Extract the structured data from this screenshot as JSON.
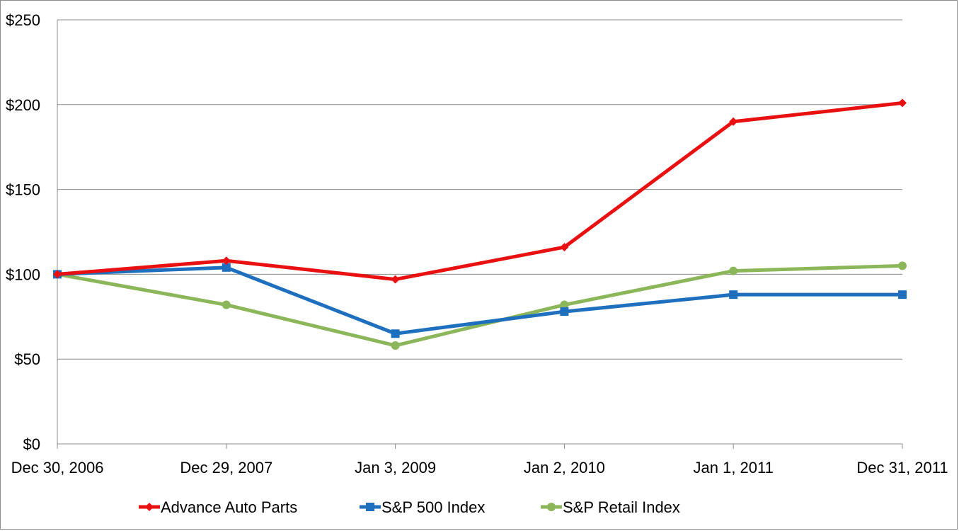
{
  "chart_data": {
    "type": "line",
    "title": "",
    "xlabel": "",
    "ylabel": "",
    "categories": [
      "Dec 30, 2006",
      "Dec 29, 2007",
      "Jan 3, 2009",
      "Jan 2, 2010",
      "Jan 1, 2011",
      "Dec 31, 2011"
    ],
    "ylim": [
      0,
      250
    ],
    "yticks": [
      0,
      50,
      100,
      150,
      200,
      250
    ],
    "ytick_labels": [
      "$0",
      "$50",
      "$100",
      "$150",
      "$200",
      "$250"
    ],
    "grid": "horizontal",
    "legend_position": "bottom",
    "series": [
      {
        "name": "Advance Auto Parts",
        "color": "#e81010",
        "marker": "diamond",
        "values": [
          100,
          108,
          97,
          116,
          190,
          201
        ]
      },
      {
        "name": "S&P 500 Index",
        "color": "#1f6fbf",
        "marker": "square",
        "values": [
          100,
          104,
          65,
          78,
          88,
          88
        ]
      },
      {
        "name": "S&P Retail Index",
        "color": "#8cb65a",
        "marker": "circle",
        "values": [
          100,
          82,
          58,
          82,
          102,
          105
        ]
      }
    ]
  }
}
